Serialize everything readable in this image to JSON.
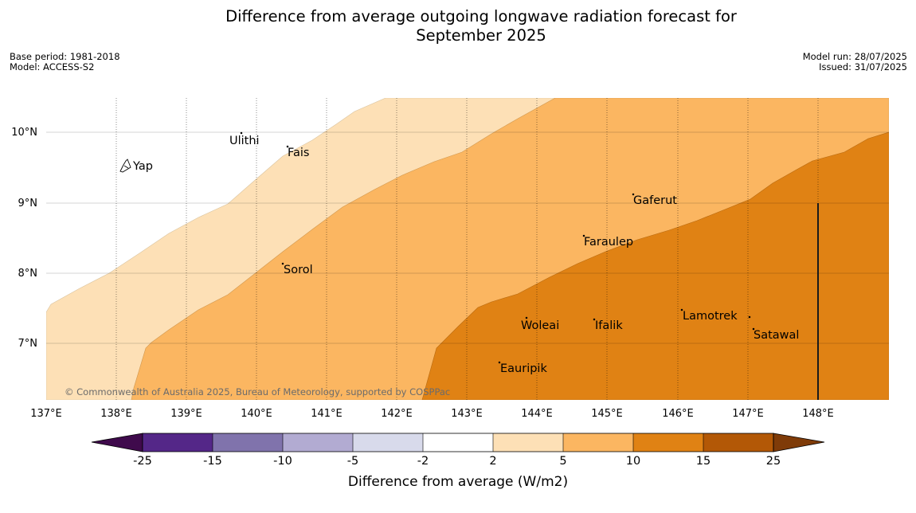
{
  "header": {
    "title_line1": "Difference from average outgoing longwave radiation forecast for",
    "title_line2": "September 2025",
    "base_period": "Base period: 1981-2018",
    "model": "Model: ACCESS-S2",
    "model_run": "Model run: 28/07/2025",
    "issued": "Issued: 31/07/2025"
  },
  "map": {
    "lat_labels": [
      "10°N",
      "9°N",
      "8°N",
      "7°N"
    ],
    "lon_labels": [
      "137°E",
      "138°E",
      "139°E",
      "140°E",
      "141°E",
      "142°E",
      "143°E",
      "144°E",
      "145°E",
      "146°E",
      "147°E",
      "148°E"
    ],
    "places": [
      "Yap",
      "Ulithi",
      "Fais",
      "Gaferut",
      "Faraulep",
      "Sorol",
      "Lamotrek",
      "Woleai",
      "Ifalik",
      "Satawal",
      "Eauripik"
    ],
    "copyright": "© Commonwealth of Australia 2025, Bureau of Meteorology, supported by COSPPac",
    "fill_colors": {
      "2_5": "#fde0b6",
      "5_10": "#fbb661",
      "10_15": "#e08214"
    }
  },
  "colorbar": {
    "title": "Difference from average (W/m2)",
    "ticks": [
      "-25",
      "-15",
      "-10",
      "-5",
      "-2",
      "2",
      "5",
      "10",
      "15",
      "25"
    ],
    "colors": [
      "#3f0a4c",
      "#542788",
      "#8073ac",
      "#b2abd2",
      "#d8daeb",
      "#ffffff",
      "#fde0b6",
      "#fbb661",
      "#e08214",
      "#b35806",
      "#7f3b08"
    ]
  }
}
